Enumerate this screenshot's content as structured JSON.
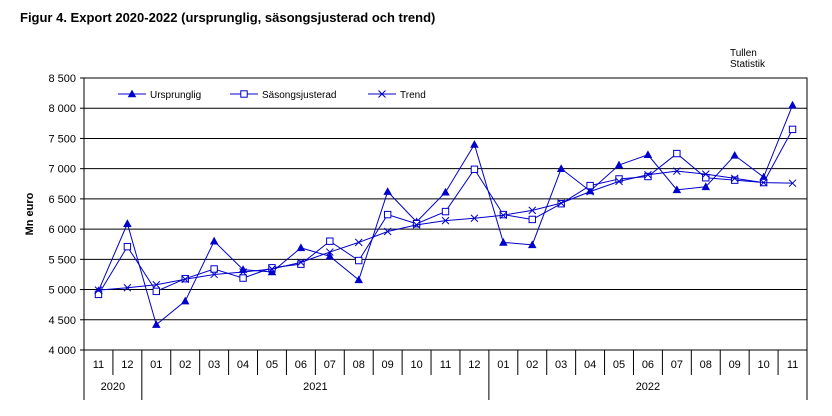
{
  "title": "Figur 4. Export 2020-2022  (ursprunglig,  säsongsjusterad  och trend)",
  "source_lines": [
    "Tullen",
    "Statistik"
  ],
  "chart_data": {
    "type": "line",
    "ylabel": "Mn euro",
    "ylim": [
      4000,
      8500
    ],
    "yticks": [
      4000,
      4500,
      5000,
      5500,
      6000,
      6500,
      7000,
      7500,
      8000,
      8500
    ],
    "ytick_labels": [
      "4 000",
      "4 500",
      "5 000",
      "5 500",
      "6 000",
      "6 500",
      "7 000",
      "7 500",
      "8 000",
      "8 500"
    ],
    "grid": true,
    "legend_position": "top",
    "categories": [
      "11",
      "12",
      "01",
      "02",
      "03",
      "04",
      "05",
      "06",
      "07",
      "08",
      "09",
      "10",
      "11",
      "12",
      "01",
      "02",
      "03",
      "04",
      "05",
      "06",
      "07",
      "08",
      "09",
      "10",
      "11"
    ],
    "year_groups": [
      {
        "label": "2020",
        "count": 2
      },
      {
        "label": "2021",
        "count": 12
      },
      {
        "label": "2022",
        "count": 11
      }
    ],
    "series": [
      {
        "name": "Ursprunglig",
        "color": "#0000cc",
        "marker": "filled-triangle",
        "values": [
          4980,
          6090,
          4420,
          4810,
          5800,
          5330,
          5290,
          5690,
          5550,
          5160,
          6620,
          6120,
          6610,
          7400,
          5780,
          5740,
          7000,
          6630,
          7060,
          7230,
          6650,
          6700,
          7220,
          6860,
          8050
        ]
      },
      {
        "name": "Säsongsjusterad",
        "color": "#0000cc",
        "marker": "open-square",
        "values": [
          4920,
          5710,
          4970,
          5180,
          5340,
          5190,
          5360,
          5420,
          5800,
          5480,
          6240,
          6090,
          6290,
          6990,
          6240,
          6160,
          6420,
          6720,
          6830,
          6870,
          7250,
          6850,
          6810,
          6770,
          7650
        ]
      },
      {
        "name": "Trend",
        "color": "#0000cc",
        "marker": "cross",
        "values": [
          4990,
          5030,
          5080,
          5170,
          5250,
          5290,
          5340,
          5450,
          5620,
          5780,
          5960,
          6070,
          6140,
          6180,
          6230,
          6310,
          6430,
          6620,
          6790,
          6900,
          6960,
          6910,
          6840,
          6770,
          6760
        ]
      }
    ]
  }
}
